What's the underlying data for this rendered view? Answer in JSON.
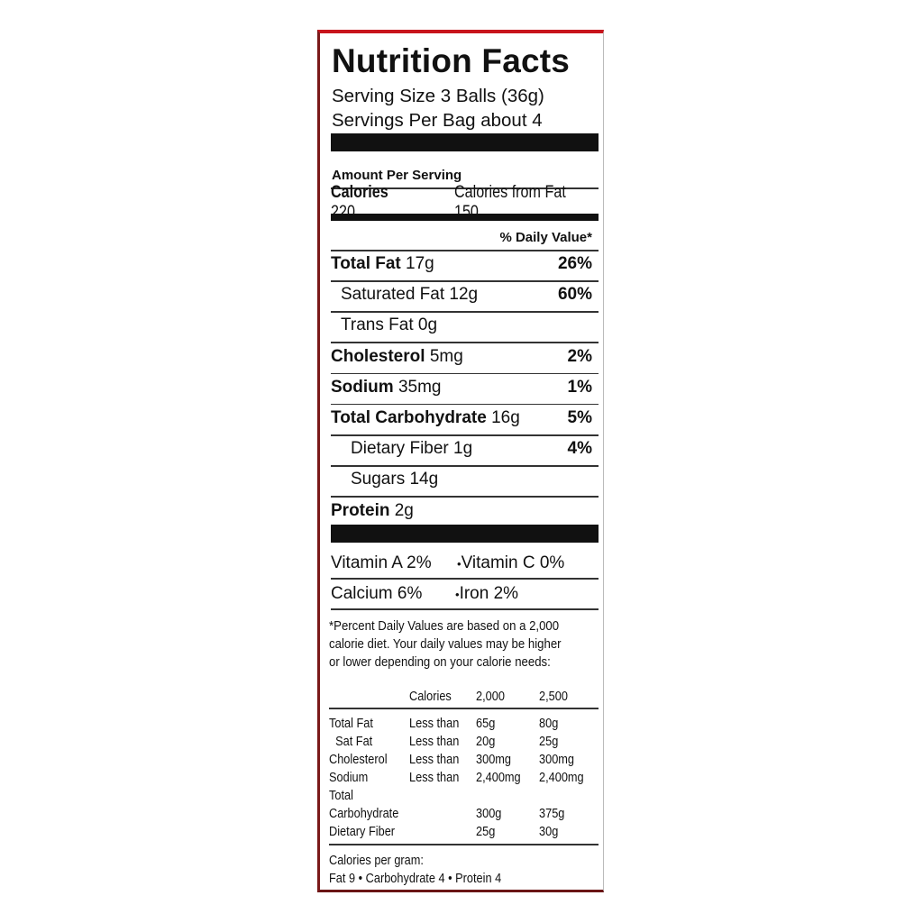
{
  "title": "Nutrition Facts",
  "serving_size": "Serving Size 3 Balls (36g)",
  "servings_per": "Servings Per Bag about 4",
  "amount_per_serving": "Amount Per Serving",
  "calories": {
    "label": "Calories",
    "value": "220",
    "from_fat": "Calories from Fat 150"
  },
  "daily_value_header": "% Daily Value*",
  "nutrients": [
    {
      "name": "Total Fat",
      "amount": "17g",
      "dv": "26%",
      "bold": true,
      "indent": 0
    },
    {
      "name": "Saturated Fat",
      "amount": "12g",
      "dv": "60%",
      "bold": false,
      "indent": 1
    },
    {
      "name": "Trans Fat",
      "amount": "0g",
      "dv": "",
      "bold": false,
      "indent": 1
    },
    {
      "name": "Cholesterol",
      "amount": "5mg",
      "dv": "2%",
      "bold": true,
      "indent": 0
    },
    {
      "name": "Sodium",
      "amount": "35mg",
      "dv": "1%",
      "bold": true,
      "indent": 0
    },
    {
      "name": "Total Carbohydrate",
      "amount": "16g",
      "dv": "5%",
      "bold": true,
      "indent": 0
    },
    {
      "name": "Dietary Fiber",
      "amount": "1g",
      "dv": "4%",
      "bold": false,
      "indent": 2
    },
    {
      "name": "Sugars",
      "amount": "14g",
      "dv": "",
      "bold": false,
      "indent": 2
    },
    {
      "name": "Protein",
      "amount": "2g",
      "dv": "",
      "bold": true,
      "indent": 0
    }
  ],
  "vitamins": [
    {
      "left": "Vitamin A 2%",
      "right": "Vitamin C 0%"
    },
    {
      "left": "Calcium 6%",
      "right": "Iron 2%"
    }
  ],
  "footnote": [
    "*Percent Daily Values are based on a 2,000",
    "calorie diet. Your daily values may be higher",
    "or lower depending on your calorie needs:"
  ],
  "reference_table": {
    "header": [
      "",
      "Calories",
      "2,000",
      "2,500"
    ],
    "rows": [
      [
        "Total Fat",
        "Less than",
        "65g",
        "80g"
      ],
      [
        "  Sat Fat",
        "Less than",
        "20g",
        "25g"
      ],
      [
        "Cholesterol",
        "Less than",
        "300mg",
        "300mg"
      ],
      [
        "Sodium",
        "Less than",
        "2,400mg",
        "2,400mg"
      ],
      [
        "Total",
        "",
        "",
        ""
      ],
      [
        "Carbohydrate",
        "",
        "300g",
        "375g"
      ],
      [
        "Dietary Fiber",
        "",
        "25g",
        "30g"
      ]
    ]
  },
  "calories_per_gram": [
    "Calories per gram:",
    "Fat 9 • Carbohydrate 4 • Protein 4"
  ]
}
